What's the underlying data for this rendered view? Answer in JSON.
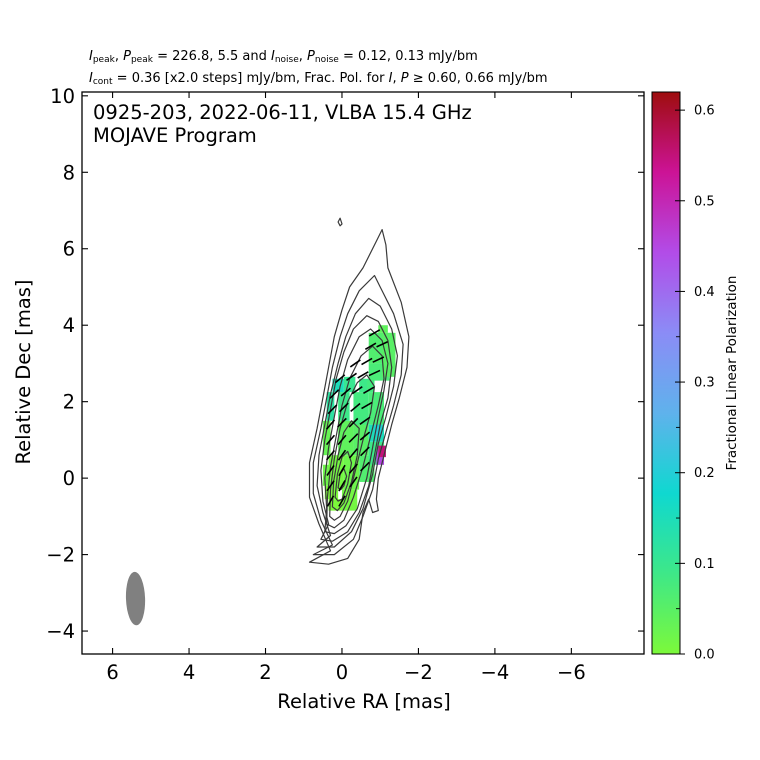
{
  "header": {
    "line1": {
      "i_peak_label": "I",
      "i_peak_sub": "peak",
      "p_peak_label": "P",
      "p_peak_sub": "peak",
      "peak_values": "= 226.8, 5.5 and",
      "i_noise_label": "I",
      "i_noise_sub": "noise",
      "p_noise_label": "P",
      "p_noise_sub": "noise",
      "noise_values": "= 0.12, 0.13 mJy/bm"
    },
    "line2": {
      "i_cont_label": "I",
      "i_cont_sub": "cont",
      "cont_text": "= 0.36 [x2.0 steps] mJy/bm, Frac. Pol. for",
      "i_label": "I",
      "p_label": "P",
      "frac_text": "≥  0.60, 0.66 mJy/bm"
    }
  },
  "chart_data": {
    "type": "heatmap",
    "title_line1": "0925-203, 2022-06-11, VLBA 15.4 GHz",
    "title_line2": "MOJAVE Program",
    "xlabel": "Relative RA [mas]",
    "ylabel": "Relative Dec [mas]",
    "xlim": [
      6.8,
      -7.9
    ],
    "ylim": [
      -4.6,
      10.1
    ],
    "xticks": [
      6,
      4,
      2,
      0,
      -2,
      -4,
      -6
    ],
    "xtick_labels": [
      "6",
      "4",
      "2",
      "0",
      "−2",
      "−4",
      "−6"
    ],
    "yticks": [
      -4,
      -2,
      0,
      2,
      4,
      6,
      8,
      10
    ],
    "ytick_labels": [
      "−4",
      "−2",
      "0",
      "2",
      "4",
      "6",
      "8",
      "10"
    ],
    "colorbar": {
      "label": "Fractional Linear Polarization",
      "range": [
        0.0,
        0.62
      ],
      "ticks": [
        0.0,
        0.1,
        0.2,
        0.3,
        0.4,
        0.5,
        0.6
      ],
      "tick_labels": [
        "0.0",
        "0.1",
        "0.2",
        "0.3",
        "0.4",
        "0.5",
        "0.6"
      ],
      "colors": [
        "#7cf93a",
        "#3ee888",
        "#0fd8d0",
        "#5fb2ec",
        "#8b8cf6",
        "#b24ce8",
        "#cc1396",
        "#9e0d0e"
      ]
    },
    "beam": {
      "ra": 5.4,
      "dec": -3.15,
      "major_mas": 1.4,
      "minor_mas": 0.5,
      "pa_deg": -2
    },
    "contours": [
      {
        "level": 0.36,
        "points": [
          [
            0.85,
            -2.2
          ],
          [
            0.3,
            -1.9
          ],
          [
            0.6,
            -1.2
          ],
          [
            0.85,
            -0.5
          ],
          [
            0.85,
            0.4
          ],
          [
            0.65,
            1.3
          ],
          [
            0.5,
            2.1
          ],
          [
            0.35,
            2.9
          ],
          [
            0.2,
            3.7
          ],
          [
            0,
            4.4
          ],
          [
            -0.2,
            5.0
          ],
          [
            -0.55,
            5.5
          ],
          [
            -0.9,
            6.2
          ],
          [
            -1.05,
            6.5
          ],
          [
            -1.15,
            6.1
          ],
          [
            -1.2,
            5.5
          ],
          [
            -1.55,
            4.6
          ],
          [
            -1.75,
            3.7
          ],
          [
            -1.7,
            2.9
          ],
          [
            -1.5,
            2.1
          ],
          [
            -1.3,
            1.4
          ],
          [
            -1.1,
            0.6
          ],
          [
            -0.95,
            0
          ],
          [
            -0.9,
            -0.55
          ],
          [
            -0.95,
            -0.85
          ],
          [
            -0.8,
            -0.9
          ],
          [
            -0.7,
            -0.55
          ],
          [
            -0.55,
            -0.9
          ],
          [
            -0.45,
            -1.6
          ],
          [
            -0.15,
            -2.1
          ],
          [
            0.35,
            -2.25
          ]
        ]
      },
      {
        "level": 0.72,
        "points": [
          [
            0.75,
            -2.0
          ],
          [
            0.25,
            -1.75
          ],
          [
            0.55,
            -1.1
          ],
          [
            0.75,
            -0.4
          ],
          [
            0.75,
            0.4
          ],
          [
            0.55,
            1.3
          ],
          [
            0.4,
            2.1
          ],
          [
            0.25,
            2.9
          ],
          [
            0.05,
            3.7
          ],
          [
            -0.15,
            4.3
          ],
          [
            -0.45,
            4.9
          ],
          [
            -0.85,
            5.3
          ],
          [
            -1.0,
            5.0
          ],
          [
            -1.35,
            4.3
          ],
          [
            -1.6,
            3.5
          ],
          [
            -1.55,
            2.7
          ],
          [
            -1.35,
            1.9
          ],
          [
            -1.15,
            1.2
          ],
          [
            -0.95,
            0.5
          ],
          [
            -0.8,
            -0.3
          ],
          [
            -0.55,
            -1.0
          ],
          [
            -0.3,
            -1.6
          ],
          [
            0.2,
            -2.0
          ]
        ]
      },
      {
        "level": 1.44,
        "points": [
          [
            0.65,
            -1.8
          ],
          [
            0.3,
            -1.5
          ],
          [
            0.5,
            -0.9
          ],
          [
            0.65,
            -0.2
          ],
          [
            0.6,
            0.6
          ],
          [
            0.45,
            1.4
          ],
          [
            0.3,
            2.2
          ],
          [
            0.1,
            3.0
          ],
          [
            -0.1,
            3.7
          ],
          [
            -0.35,
            4.3
          ],
          [
            -0.7,
            4.7
          ],
          [
            -1.0,
            4.5
          ],
          [
            -1.3,
            3.9
          ],
          [
            -1.45,
            3.2
          ],
          [
            -1.35,
            2.4
          ],
          [
            -1.15,
            1.6
          ],
          [
            -0.95,
            0.9
          ],
          [
            -0.8,
            0.1
          ],
          [
            -0.55,
            -0.8
          ],
          [
            -0.25,
            -1.4
          ],
          [
            0.2,
            -1.8
          ]
        ]
      },
      {
        "level": 2.88,
        "points": [
          [
            0.55,
            -1.6
          ],
          [
            0.35,
            -1.2
          ],
          [
            0.5,
            -0.6
          ],
          [
            0.55,
            0.2
          ],
          [
            0.45,
            1.0
          ],
          [
            0.3,
            1.8
          ],
          [
            0.15,
            2.6
          ],
          [
            -0.05,
            3.3
          ],
          [
            -0.3,
            3.9
          ],
          [
            -0.65,
            4.25
          ],
          [
            -0.95,
            4.1
          ],
          [
            -1.2,
            3.6
          ],
          [
            -1.3,
            2.9
          ],
          [
            -1.2,
            2.1
          ],
          [
            -1.0,
            1.4
          ],
          [
            -0.85,
            0.6
          ],
          [
            -0.7,
            -0.2
          ],
          [
            -0.45,
            -0.9
          ],
          [
            -0.15,
            -1.4
          ],
          [
            0.25,
            -1.65
          ]
        ]
      },
      {
        "level": 5.76,
        "points": [
          [
            0.45,
            -1.4
          ],
          [
            0.4,
            -0.8
          ],
          [
            0.45,
            0
          ],
          [
            0.35,
            0.8
          ],
          [
            0.2,
            1.6
          ],
          [
            0.05,
            2.4
          ],
          [
            -0.15,
            3.1
          ],
          [
            -0.45,
            3.7
          ],
          [
            -0.75,
            3.9
          ],
          [
            -1.05,
            3.6
          ],
          [
            -1.2,
            3.0
          ],
          [
            -1.1,
            2.3
          ],
          [
            -0.95,
            1.6
          ],
          [
            -0.8,
            0.8
          ],
          [
            -0.65,
            0
          ],
          [
            -0.4,
            -0.8
          ],
          [
            -0.1,
            -1.25
          ],
          [
            0.2,
            -1.45
          ]
        ]
      },
      {
        "level": 11.52,
        "points": [
          [
            0.4,
            -1.2
          ],
          [
            0.38,
            -0.5
          ],
          [
            0.3,
            0.3
          ],
          [
            0.15,
            1.1
          ],
          [
            0,
            1.9
          ],
          [
            -0.2,
            2.6
          ],
          [
            -0.5,
            3.2
          ],
          [
            -0.8,
            3.45
          ],
          [
            -1.05,
            3.2
          ],
          [
            -1.1,
            2.6
          ],
          [
            -0.95,
            1.9
          ],
          [
            -0.75,
            1.1
          ],
          [
            -0.55,
            0.3
          ],
          [
            -0.3,
            -0.5
          ],
          [
            -0.05,
            -1.1
          ],
          [
            0.2,
            -1.3
          ]
        ]
      },
      {
        "level": 23.04,
        "points": [
          [
            0.32,
            -1.0
          ],
          [
            0.3,
            -0.3
          ],
          [
            0.2,
            0.5
          ],
          [
            0.05,
            1.3
          ],
          [
            -0.15,
            2.0
          ],
          [
            -0.4,
            2.5
          ],
          [
            -0.65,
            2.7
          ],
          [
            -0.85,
            2.4
          ],
          [
            -0.75,
            1.7
          ],
          [
            -0.55,
            1.0
          ],
          [
            -0.35,
            0.2
          ],
          [
            -0.15,
            -0.6
          ],
          [
            0.05,
            -1.0
          ],
          [
            0.2,
            -1.1
          ]
        ]
      },
      {
        "level": 46.08,
        "points": [
          [
            0.25,
            -0.75
          ],
          [
            0.22,
            -0.1
          ],
          [
            0.1,
            0.6
          ],
          [
            -0.05,
            1.2
          ],
          [
            -0.25,
            1.5
          ],
          [
            -0.45,
            1.3
          ],
          [
            -0.4,
            0.6
          ],
          [
            -0.25,
            -0.1
          ],
          [
            -0.05,
            -0.65
          ],
          [
            0.12,
            -0.85
          ]
        ]
      },
      {
        "level": 92.16,
        "points": [
          [
            0.18,
            -0.5
          ],
          [
            0.12,
            0.1
          ],
          [
            0,
            0.55
          ],
          [
            -0.15,
            0.7
          ],
          [
            -0.25,
            0.4
          ],
          [
            -0.15,
            -0.15
          ],
          [
            0,
            -0.55
          ],
          [
            0.1,
            -0.6
          ]
        ]
      },
      {
        "level": 184.32,
        "points": [
          [
            0.1,
            -0.25
          ],
          [
            0.05,
            0.1
          ],
          [
            -0.05,
            0.25
          ],
          [
            -0.12,
            0.05
          ],
          [
            -0.05,
            -0.2
          ],
          [
            0.03,
            -0.3
          ]
        ]
      },
      {
        "level": 0.36,
        "points": [
          [
            0.1,
            6.7
          ],
          [
            0.05,
            6.8
          ],
          [
            0.0,
            6.65
          ],
          [
            0.05,
            6.6
          ]
        ]
      }
    ],
    "pol_pixels": [
      {
        "x": 0.35,
        "y": -0.85,
        "w": 0.4,
        "h": 0.3,
        "frac": 0.0
      },
      {
        "x": 0.45,
        "y": -0.55,
        "w": 0.35,
        "h": 0.35,
        "frac": 0.0
      },
      {
        "x": 0.0,
        "y": -0.85,
        "w": 0.4,
        "h": 0.55,
        "frac": 0.01
      },
      {
        "x": 0.5,
        "y": -0.2,
        "w": 0.2,
        "h": 0.55,
        "frac": 0.02
      },
      {
        "x": 0.35,
        "y": -0.3,
        "w": 0.4,
        "h": 0.9,
        "frac": 0.01
      },
      {
        "x": -0.05,
        "y": -0.3,
        "w": 0.4,
        "h": 0.9,
        "frac": 0.02
      },
      {
        "x": -0.45,
        "y": -0.1,
        "w": 0.4,
        "h": 0.7,
        "frac": 0.06
      },
      {
        "x": 0.5,
        "y": 0.6,
        "w": 0.2,
        "h": 0.9,
        "frac": 0.03
      },
      {
        "x": 0.1,
        "y": 0.6,
        "w": 0.4,
        "h": 0.9,
        "frac": 0.04
      },
      {
        "x": -0.3,
        "y": 0.6,
        "w": 0.4,
        "h": 0.9,
        "frac": 0.05
      },
      {
        "x": -0.7,
        "y": 0.35,
        "w": 0.4,
        "h": 0.6,
        "frac": 0.09
      },
      {
        "x": -0.9,
        "y": 0.35,
        "w": 0.2,
        "h": 0.4,
        "frac": 0.45
      },
      {
        "x": -0.95,
        "y": 0.55,
        "w": 0.2,
        "h": 0.3,
        "frac": 0.55
      },
      {
        "x": -0.7,
        "y": 0.95,
        "w": 0.4,
        "h": 0.45,
        "frac": 0.15
      },
      {
        "x": -0.85,
        "y": 1.1,
        "w": 0.2,
        "h": 0.35,
        "frac": 0.2
      },
      {
        "x": 0.4,
        "y": 1.5,
        "w": 0.2,
        "h": 0.75,
        "frac": 0.12
      },
      {
        "x": 0.1,
        "y": 1.5,
        "w": 0.3,
        "h": 0.75,
        "frac": 0.09
      },
      {
        "x": -0.3,
        "y": 1.4,
        "w": 0.4,
        "h": 0.85,
        "frac": 0.08
      },
      {
        "x": -0.7,
        "y": 1.4,
        "w": 0.4,
        "h": 0.85,
        "frac": 0.07
      },
      {
        "x": 0.25,
        "y": 2.25,
        "w": 0.3,
        "h": 0.35,
        "frac": 0.15
      },
      {
        "x": -0.05,
        "y": 2.25,
        "w": 0.3,
        "h": 0.4,
        "frac": 0.1
      },
      {
        "x": -0.45,
        "y": 2.25,
        "w": 0.4,
        "h": 0.35,
        "frac": 0.09
      },
      {
        "x": -0.65,
        "y": 2.25,
        "w": 0.2,
        "h": 0.3,
        "frac": 0.08
      },
      {
        "x": -0.7,
        "y": 2.55,
        "w": 0.55,
        "h": 0.45,
        "frac": 0.07
      },
      {
        "x": -0.7,
        "y": 3.0,
        "w": 0.45,
        "h": 0.8,
        "frac": 0.06
      },
      {
        "x": -1.05,
        "y": 2.65,
        "w": 0.35,
        "h": 1.15,
        "frac": 0.05
      },
      {
        "x": -1.2,
        "y": 3.2,
        "w": 0.15,
        "h": 0.6,
        "frac": 0.05
      },
      {
        "x": -0.95,
        "y": 3.8,
        "w": 0.25,
        "h": 0.2,
        "frac": 0.04
      }
    ],
    "evpa_ticks": [
      [
        0.3,
        -0.6,
        30
      ],
      [
        0.0,
        -0.6,
        30
      ],
      [
        0.3,
        -0.2,
        35
      ],
      [
        0.0,
        -0.2,
        30
      ],
      [
        -0.3,
        -0.1,
        35
      ],
      [
        0.3,
        0.2,
        35
      ],
      [
        0.0,
        0.2,
        30
      ],
      [
        -0.3,
        0.25,
        40
      ],
      [
        -0.6,
        0.3,
        45
      ],
      [
        0.3,
        0.6,
        40
      ],
      [
        0.0,
        0.6,
        35
      ],
      [
        -0.3,
        0.65,
        40
      ],
      [
        -0.6,
        0.7,
        45
      ],
      [
        0.3,
        1.0,
        40
      ],
      [
        0.0,
        1.0,
        40
      ],
      [
        -0.3,
        1.05,
        45
      ],
      [
        -0.6,
        1.1,
        50
      ],
      [
        0.3,
        1.4,
        40
      ],
      [
        0.0,
        1.45,
        45
      ],
      [
        -0.3,
        1.45,
        45
      ],
      [
        -0.6,
        1.5,
        55
      ],
      [
        0.25,
        1.8,
        45
      ],
      [
        -0.05,
        1.85,
        45
      ],
      [
        -0.35,
        1.85,
        50
      ],
      [
        -0.65,
        1.9,
        60
      ],
      [
        0.2,
        2.2,
        45
      ],
      [
        -0.1,
        2.25,
        50
      ],
      [
        -0.4,
        2.3,
        55
      ],
      [
        -0.7,
        2.3,
        60
      ],
      [
        0.05,
        2.6,
        50
      ],
      [
        -0.25,
        2.65,
        55
      ],
      [
        -0.55,
        2.7,
        60
      ],
      [
        -0.85,
        2.75,
        65
      ],
      [
        -0.35,
        3.0,
        55
      ],
      [
        -0.65,
        3.05,
        60
      ],
      [
        -0.95,
        3.1,
        65
      ],
      [
        -0.75,
        3.45,
        60
      ],
      [
        -1.05,
        3.5,
        65
      ],
      [
        -0.85,
        3.8,
        60
      ]
    ]
  }
}
